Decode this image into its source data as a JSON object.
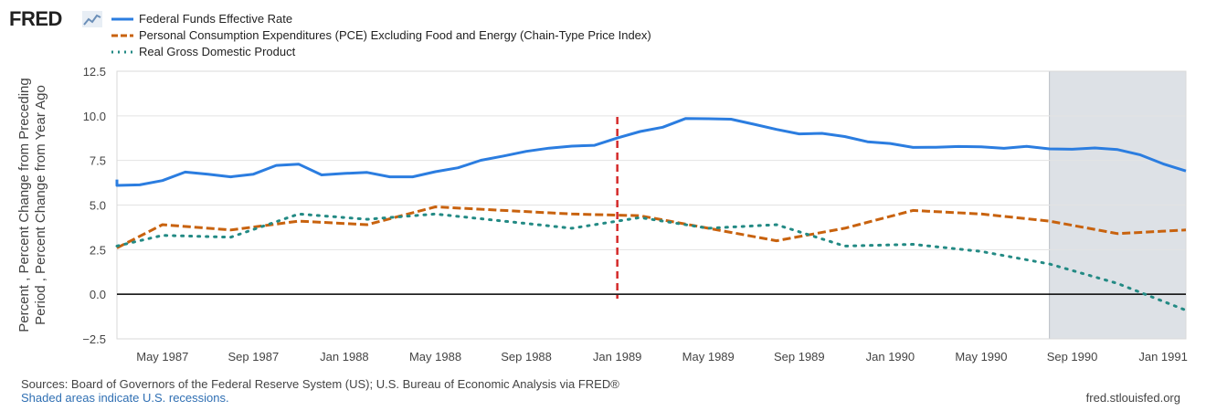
{
  "brand": {
    "name": "FRED"
  },
  "legend": [
    {
      "label": "Federal Funds Effective Rate",
      "color": "#2b7de0",
      "style": "solid"
    },
    {
      "label": "Personal Consumption Expenditures (PCE) Excluding Food and Energy (Chain-Type Price Index)",
      "color": "#c8620e",
      "style": "dashed"
    },
    {
      "label": "Real Gross Domestic Product",
      "color": "#238a84",
      "style": "dotted"
    }
  ],
  "footer": {
    "sources": "Sources: Board of Governors of the Federal Reserve System (US); U.S. Bureau of Economic Analysis via FRED®",
    "recession_note": "Shaded areas indicate U.S. recessions.",
    "site": "fred.stlouisfed.org"
  },
  "chart_data": {
    "type": "line",
    "ylabel": "Percent , Percent Change from Preceding Period , Percent Change from Year Ago",
    "ylim": [
      -2.5,
      12.5
    ],
    "yticks": [
      "12.5",
      "10.0",
      "7.5",
      "5.0",
      "2.5",
      "0.0",
      "−2.5"
    ],
    "x_range": [
      "1987-02",
      "1991-01"
    ],
    "x_tick_labels": [
      {
        "label": "May 1987",
        "month": 3
      },
      {
        "label": "Sep 1987",
        "month": 7
      },
      {
        "label": "Jan 1988",
        "month": 11
      },
      {
        "label": "May 1988",
        "month": 15
      },
      {
        "label": "Sep 1988",
        "month": 19
      },
      {
        "label": "Jan 1989",
        "month": 23
      },
      {
        "label": "May 1989",
        "month": 27
      },
      {
        "label": "Sep 1989",
        "month": 31
      },
      {
        "label": "Jan 1990",
        "month": 35
      },
      {
        "label": "May 1990",
        "month": 39
      },
      {
        "label": "Sep 1990",
        "month": 43
      },
      {
        "label": "Jan 1991",
        "month": 47
      }
    ],
    "recession": {
      "start": "1990-07",
      "end": "1991-01"
    },
    "marker_line": {
      "date": "1988-12"
    },
    "zero_line": 0,
    "series": [
      {
        "name": "Federal Funds Effective Rate",
        "x": [
          "1987-01",
          "1987-02",
          "1987-03",
          "1987-04",
          "1987-05",
          "1987-06",
          "1987-07",
          "1987-08",
          "1987-09",
          "1987-10",
          "1987-11",
          "1987-12",
          "1988-01",
          "1988-02",
          "1988-03",
          "1988-04",
          "1988-05",
          "1988-06",
          "1988-07",
          "1988-08",
          "1988-09",
          "1988-10",
          "1988-11",
          "1988-12",
          "1989-01",
          "1989-02",
          "1989-03",
          "1989-04",
          "1989-05",
          "1989-06",
          "1989-07",
          "1989-08",
          "1989-09",
          "1989-10",
          "1989-11",
          "1989-12",
          "1990-01",
          "1990-02",
          "1990-03",
          "1990-04",
          "1990-05",
          "1990-06",
          "1990-07",
          "1990-08",
          "1990-09",
          "1990-10",
          "1990-11",
          "1990-12",
          "1991-01"
        ],
        "y": [
          6.43,
          6.1,
          6.13,
          6.37,
          6.85,
          6.73,
          6.58,
          6.73,
          7.22,
          7.29,
          6.69,
          6.77,
          6.83,
          6.58,
          6.58,
          6.87,
          7.09,
          7.51,
          7.75,
          8.01,
          8.19,
          8.3,
          8.35,
          8.76,
          9.12,
          9.36,
          9.85,
          9.84,
          9.81,
          9.53,
          9.24,
          8.99,
          9.02,
          8.84,
          8.55,
          8.45,
          8.23,
          8.24,
          8.28,
          8.26,
          8.18,
          8.29,
          8.15,
          8.13,
          8.2,
          8.11,
          7.81,
          7.31,
          6.91
        ]
      },
      {
        "name": "Personal Consumption Expenditures (PCE) Excluding Food and Energy (Chain-Type Price Index)",
        "x": [
          "1987-01",
          "1987-04",
          "1987-07",
          "1987-10",
          "1988-01",
          "1988-04",
          "1988-07",
          "1988-10",
          "1989-01",
          "1989-04",
          "1989-07",
          "1989-10",
          "1990-01",
          "1990-04",
          "1990-07",
          "1990-10",
          "1991-01"
        ],
        "y": [
          2.6,
          3.9,
          3.6,
          4.1,
          3.9,
          4.9,
          4.7,
          4.5,
          4.4,
          3.7,
          3.0,
          3.7,
          4.7,
          4.5,
          4.1,
          3.4,
          3.6
        ]
      },
      {
        "name": "Real Gross Domestic Product",
        "x": [
          "1987-01",
          "1987-04",
          "1987-07",
          "1987-10",
          "1988-01",
          "1988-04",
          "1988-07",
          "1988-10",
          "1989-01",
          "1989-04",
          "1989-07",
          "1989-10",
          "1990-01",
          "1990-04",
          "1990-07",
          "1990-10",
          "1991-01"
        ],
        "y": [
          2.7,
          3.3,
          3.2,
          4.5,
          4.2,
          4.5,
          4.1,
          3.7,
          4.3,
          3.7,
          3.9,
          2.7,
          2.8,
          2.4,
          1.7,
          0.6,
          -0.9
        ]
      }
    ]
  }
}
